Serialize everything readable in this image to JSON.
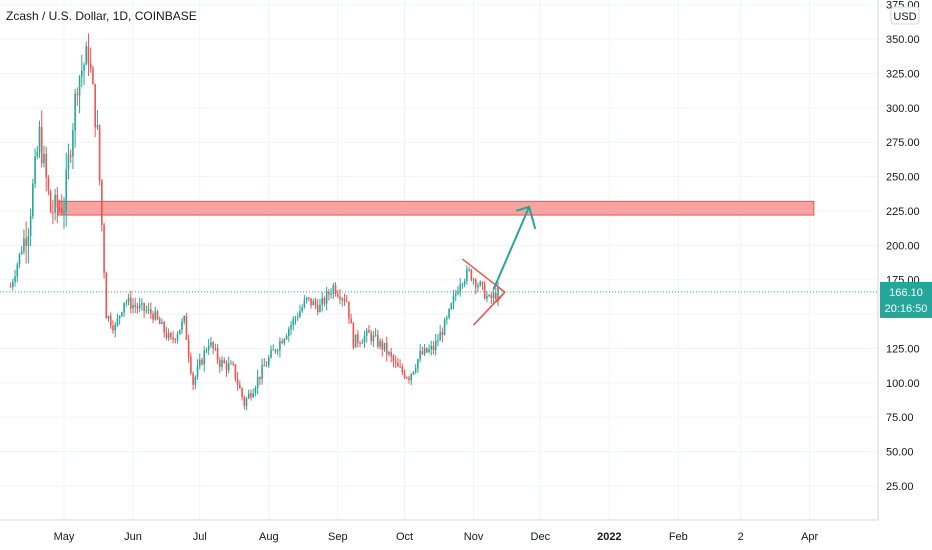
{
  "header": {
    "symbol_title": "Zcash / U.S. Dollar, 1D, COINBASE",
    "currency_badge": "USD"
  },
  "price_badge": {
    "price": "166.10",
    "countdown": "20:16:50"
  },
  "colors": {
    "up": "#26a69a",
    "down": "#ef5350",
    "zone_fill": "#f7a3a1",
    "zone_stroke": "#ef5350",
    "arrow": "#26a69a",
    "wedge": "#ef5350",
    "price_line": "#26a69a",
    "grid": "#f0f3fa"
  },
  "chart_data": {
    "type": "candlestick",
    "title": "Zcash / U.S. Dollar, 1D, COINBASE",
    "ylim": [
      0,
      380
    ],
    "y_ticks": [
      25,
      50,
      75,
      100,
      125,
      150,
      175,
      200,
      225,
      250,
      275,
      300,
      325,
      350,
      375
    ],
    "y_tick_labels": [
      "25.00",
      "50.00",
      "75.00",
      "100.00",
      "125.00",
      "150.00",
      "175.00",
      "200.00",
      "225.00",
      "250.00",
      "275.00",
      "300.00",
      "325.00",
      "350.00",
      "375.00"
    ],
    "x_ticks": [
      {
        "date": "2021-05-01",
        "label": "May",
        "bold": false
      },
      {
        "date": "2021-06-01",
        "label": "Jun",
        "bold": false
      },
      {
        "date": "2021-07-01",
        "label": "Jul",
        "bold": false
      },
      {
        "date": "2021-08-01",
        "label": "Aug",
        "bold": false
      },
      {
        "date": "2021-09-01",
        "label": "Sep",
        "bold": false
      },
      {
        "date": "2021-10-01",
        "label": "Oct",
        "bold": false
      },
      {
        "date": "2021-11-01",
        "label": "Nov",
        "bold": false
      },
      {
        "date": "2021-12-01",
        "label": "Dec",
        "bold": false
      },
      {
        "date": "2022-01-01",
        "label": "2022",
        "bold": true
      },
      {
        "date": "2022-02-01",
        "label": "Feb",
        "bold": false
      },
      {
        "date": "2022-03-01",
        "label": "2",
        "bold": false
      },
      {
        "date": "2022-04-01",
        "label": "Apr",
        "bold": false
      }
    ],
    "last_price": 166.1,
    "ohlc_monthly_points": [
      [
        "2021-04-07",
        170
      ],
      [
        "2021-04-15",
        215
      ],
      [
        "2021-04-20",
        280
      ],
      [
        "2021-04-25",
        225
      ],
      [
        "2021-05-01",
        230
      ],
      [
        "2021-05-07",
        320
      ],
      [
        "2021-05-12",
        340
      ],
      [
        "2021-05-16",
        280
      ],
      [
        "2021-05-20",
        150
      ],
      [
        "2021-05-24",
        140
      ],
      [
        "2021-05-28",
        160
      ],
      [
        "2021-06-03",
        155
      ],
      [
        "2021-06-10",
        150
      ],
      [
        "2021-06-18",
        130
      ],
      [
        "2021-06-24",
        145
      ],
      [
        "2021-06-28",
        100
      ],
      [
        "2021-07-05",
        130
      ],
      [
        "2021-07-10",
        115
      ],
      [
        "2021-07-16",
        110
      ],
      [
        "2021-07-21",
        85
      ],
      [
        "2021-07-26",
        100
      ],
      [
        "2021-08-02",
        120
      ],
      [
        "2021-08-10",
        140
      ],
      [
        "2021-08-18",
        160
      ],
      [
        "2021-08-24",
        155
      ],
      [
        "2021-08-30",
        170
      ],
      [
        "2021-09-05",
        160
      ],
      [
        "2021-09-08",
        130
      ],
      [
        "2021-09-15",
        135
      ],
      [
        "2021-09-22",
        125
      ],
      [
        "2021-09-28",
        110
      ],
      [
        "2021-10-03",
        105
      ],
      [
        "2021-10-08",
        120
      ],
      [
        "2021-10-14",
        125
      ],
      [
        "2021-10-20",
        145
      ],
      [
        "2021-10-26",
        175
      ],
      [
        "2021-10-30",
        180
      ],
      [
        "2021-11-04",
        170
      ],
      [
        "2021-11-08",
        160
      ],
      [
        "2021-11-12",
        166
      ]
    ],
    "resistance_zone": {
      "y_low": 222,
      "y_high": 232,
      "x_start": "2021-05-01",
      "x_end": "2022-04-15"
    },
    "projection_arrow": {
      "x_from": "2021-11-10",
      "y_from": 168,
      "x_to": "2021-11-26",
      "y_to": 228
    },
    "wedge": {
      "apex_date": "2021-11-15",
      "apex_price": 166,
      "top_start": [
        "2021-10-27",
        190
      ],
      "bottom_start": [
        "2021-11-01",
        142
      ]
    }
  }
}
